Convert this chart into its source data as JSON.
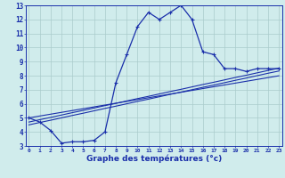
{
  "xlabel": "Graphe des températures (°c)",
  "background_color": "#d0ecec",
  "grid_color": "#aacccc",
  "line_color": "#1a2faa",
  "hours": [
    0,
    1,
    2,
    3,
    4,
    5,
    6,
    7,
    8,
    9,
    10,
    11,
    12,
    13,
    14,
    15,
    16,
    17,
    18,
    19,
    20,
    21,
    22,
    23
  ],
  "temp_actual": [
    5.0,
    4.7,
    4.1,
    3.2,
    3.3,
    3.3,
    3.4,
    4.0,
    7.5,
    9.5,
    11.5,
    12.5,
    12.0,
    12.5,
    13.0,
    12.0,
    9.7,
    9.5,
    8.5,
    8.5,
    8.3,
    8.5,
    8.5,
    8.5
  ],
  "trend_line1": [
    4.5,
    4.67,
    4.83,
    5.0,
    5.17,
    5.33,
    5.5,
    5.67,
    5.83,
    6.0,
    6.17,
    6.33,
    6.5,
    6.67,
    6.83,
    7.0,
    7.17,
    7.33,
    7.5,
    7.67,
    7.83,
    8.0,
    8.17,
    8.33
  ],
  "trend_line2": [
    4.7,
    4.87,
    5.03,
    5.2,
    5.37,
    5.53,
    5.7,
    5.87,
    6.03,
    6.2,
    6.37,
    6.53,
    6.7,
    6.87,
    7.03,
    7.2,
    7.37,
    7.53,
    7.7,
    7.87,
    8.03,
    8.2,
    8.37,
    8.53
  ],
  "trend_line3": [
    5.0,
    5.13,
    5.26,
    5.39,
    5.52,
    5.65,
    5.78,
    5.91,
    6.04,
    6.17,
    6.3,
    6.43,
    6.56,
    6.69,
    6.82,
    6.95,
    7.08,
    7.21,
    7.34,
    7.47,
    7.6,
    7.73,
    7.86,
    7.99
  ],
  "ylim": [
    3,
    13
  ],
  "xlim": [
    0,
    23
  ],
  "yticks": [
    3,
    4,
    5,
    6,
    7,
    8,
    9,
    10,
    11,
    12,
    13
  ],
  "xticks": [
    0,
    1,
    2,
    3,
    4,
    5,
    6,
    7,
    8,
    9,
    10,
    11,
    12,
    13,
    14,
    15,
    16,
    17,
    18,
    19,
    20,
    21,
    22,
    23
  ]
}
